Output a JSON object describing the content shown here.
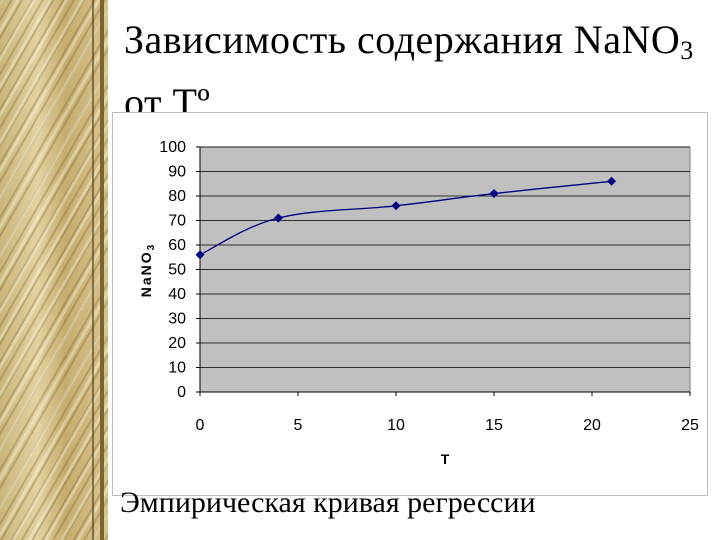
{
  "slide": {
    "title_main": "Зависимость содержания NaNO",
    "title_sub": "3",
    "title_line2": "от Tº",
    "caption": "Эмпирическая кривая регрессии"
  },
  "colors": {
    "plot_area": "#c0c0c0",
    "series_line": "#000080",
    "marker": "#000080",
    "gridline": "#000000"
  },
  "chart_data": {
    "type": "line",
    "title": "",
    "xlabel": "T",
    "ylabel": "NaNO3",
    "ylabel_main": "NaNO",
    "ylabel_sub": "3",
    "xlim": [
      0,
      25
    ],
    "ylim": [
      0,
      100
    ],
    "x_ticks": [
      0,
      5,
      10,
      15,
      20,
      25
    ],
    "y_ticks": [
      0,
      10,
      20,
      30,
      40,
      50,
      60,
      70,
      80,
      90,
      100
    ],
    "grid": "horizontal",
    "legend": "none",
    "smooth": true,
    "series": [
      {
        "x": [
          0,
          4,
          10,
          15,
          21
        ],
        "y": [
          56,
          71,
          76,
          81,
          86
        ]
      }
    ]
  }
}
